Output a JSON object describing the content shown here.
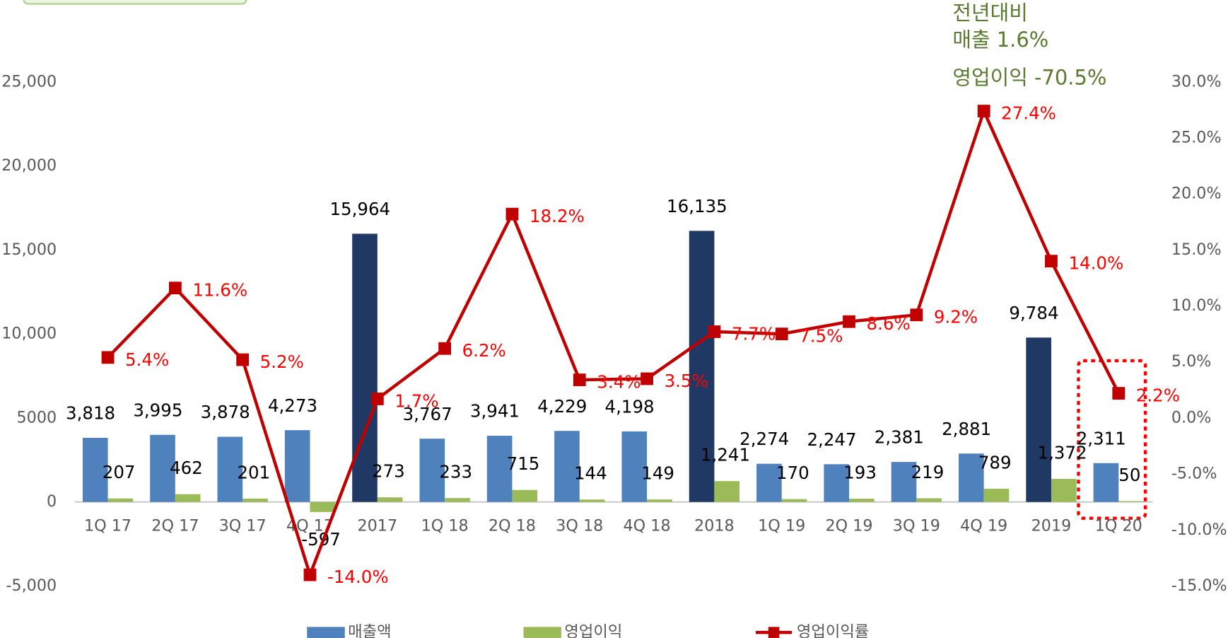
{
  "chart_data": {
    "type": "bar",
    "categories": [
      "1Q 17",
      "2Q 17",
      "3Q 17",
      "4Q 17",
      "2017",
      "1Q 18",
      "2Q 18",
      "3Q 18",
      "4Q 18",
      "2018",
      "1Q 19",
      "2Q 19",
      "3Q 19",
      "4Q 19",
      "2019",
      "1Q 20"
    ],
    "series": [
      {
        "name": "매출액",
        "type": "bar",
        "color": "#4f81bd",
        "point_colors": [
          "#4f81bd",
          "#4f81bd",
          "#4f81bd",
          "#4f81bd",
          "#1f3864",
          "#4f81bd",
          "#4f81bd",
          "#4f81bd",
          "#4f81bd",
          "#1f3864",
          "#4f81bd",
          "#4f81bd",
          "#4f81bd",
          "#4f81bd",
          "#1f3864",
          "#4f81bd"
        ],
        "values": [
          3818,
          3995,
          3878,
          4273,
          15964,
          3767,
          3941,
          4229,
          4198,
          16135,
          2274,
          2247,
          2381,
          2881,
          9784,
          2311
        ],
        "value_labels": [
          "3,818",
          "3,995",
          "3,878",
          "4,273",
          "15,964",
          "3,767",
          "3,941",
          "4,229",
          "4,198",
          "16,135",
          "2,274",
          "2,247",
          "2,381",
          "2,881",
          "9,784",
          "2,311"
        ]
      },
      {
        "name": "영업이익",
        "type": "bar",
        "color": "#9bbb59",
        "values": [
          207,
          462,
          201,
          -597,
          273,
          233,
          715,
          144,
          149,
          1241,
          170,
          193,
          219,
          789,
          1372,
          50
        ],
        "value_labels": [
          "207",
          "462",
          "201",
          "-597",
          "273",
          "233",
          "715",
          "144",
          "149",
          "1,241",
          "170",
          "193",
          "219",
          "789",
          "1,372",
          "50"
        ]
      },
      {
        "name": "영업이익률",
        "type": "line",
        "axis": "y2",
        "color": "#c00000",
        "values": [
          5.4,
          11.6,
          5.2,
          -14.0,
          1.7,
          6.2,
          18.2,
          3.4,
          3.5,
          7.7,
          7.5,
          8.6,
          9.2,
          27.4,
          14.0,
          2.2
        ],
        "value_labels": [
          "5.4%",
          "11.6%",
          "5.2%",
          "-14.0%",
          "1.7%",
          "6.2%",
          "18.2%",
          "3.4%",
          "3.5%",
          "7.7%",
          "7.5%",
          "8.6%",
          "9.2%",
          "27.4%",
          "14.0%",
          "2.2%"
        ]
      }
    ],
    "ylim": [
      -5000,
      25000
    ],
    "yticks": [
      {
        "value": -5000,
        "label": "-5,000"
      },
      0,
      5000,
      {
        "value": 10000,
        "label": "10,000"
      },
      {
        "value": 15000,
        "label": "15,000"
      },
      {
        "value": 20000,
        "label": "20,000"
      },
      {
        "value": 25000,
        "label": "25,000"
      }
    ],
    "y2lim": [
      -15,
      30
    ],
    "y2ticks": [
      {
        "value": -15,
        "label": "-15.0%"
      },
      {
        "value": -10,
        "label": "-10.0%"
      },
      {
        "value": -5,
        "label": "-5.0%"
      },
      {
        "value": 0,
        "label": "0.0%"
      },
      {
        "value": 5,
        "label": "5.0%"
      },
      {
        "value": 10,
        "label": "10.0%"
      },
      {
        "value": 15,
        "label": "15.0%"
      },
      {
        "value": 20,
        "label": "20.0%"
      },
      {
        "value": 25,
        "label": "25.0%"
      },
      {
        "value": 30,
        "label": "30.0%"
      }
    ],
    "annotations": [
      "전년대비",
      "매출 1.6%",
      "영업이익 -70.5%"
    ],
    "legend": "bottom"
  }
}
